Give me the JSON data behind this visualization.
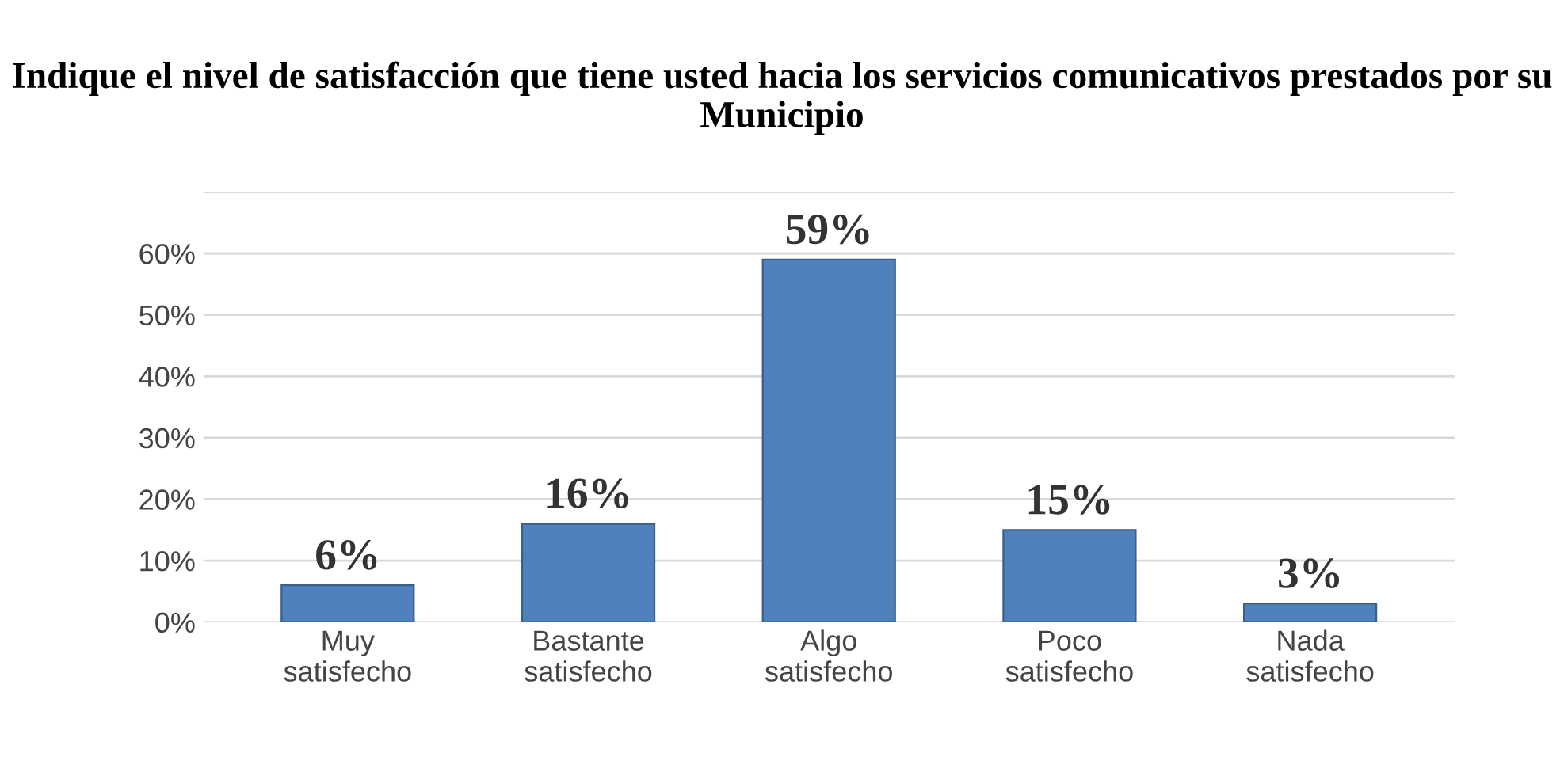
{
  "chart_data": {
    "type": "bar",
    "title": "Indique el nivel de satisfacción que tiene usted hacia los servicios comunicativos prestados por su Municipio",
    "categories": [
      "Muy\nsatisfecho",
      "Bastante\nsatisfecho",
      "Algo\nsatisfecho",
      "Poco\nsatisfecho",
      "Nada\nsatisfecho"
    ],
    "values": [
      6,
      16,
      59,
      15,
      3
    ],
    "value_labels": [
      "6%",
      "16%",
      "59%",
      "15%",
      "3%"
    ],
    "color": "#4f81bd",
    "ylim": [
      0,
      70
    ],
    "yticks": [
      {
        "value": 0,
        "label": "0%"
      },
      {
        "value": 10,
        "label": "10%"
      },
      {
        "value": 20,
        "label": "20%"
      },
      {
        "value": 30,
        "label": "30%"
      },
      {
        "value": 40,
        "label": "40%"
      },
      {
        "value": 50,
        "label": "50%"
      },
      {
        "value": 60,
        "label": "60%"
      },
      {
        "value": 70,
        "label": null
      }
    ],
    "grid": "y"
  }
}
